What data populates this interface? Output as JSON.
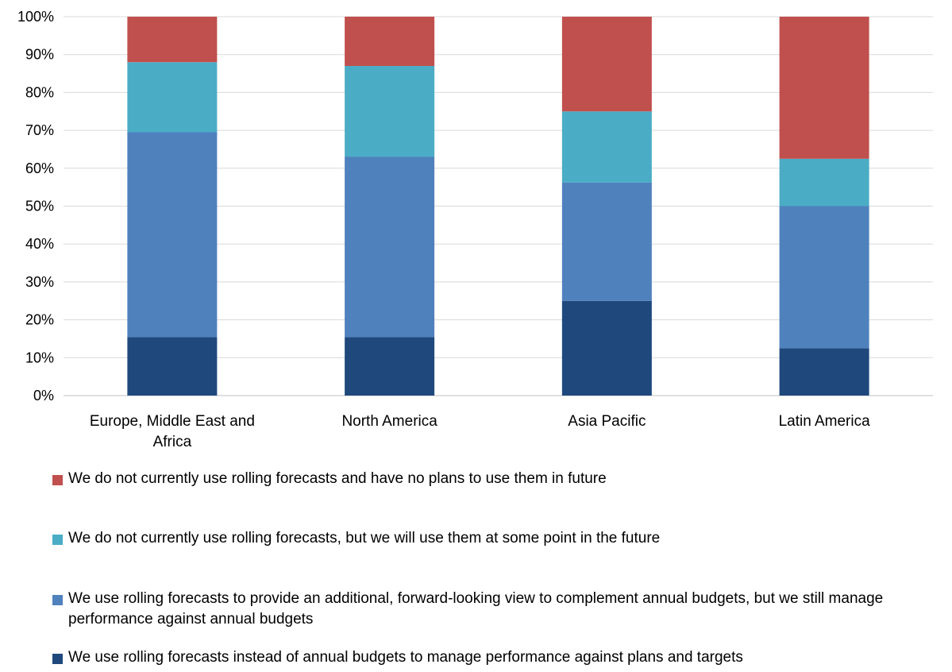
{
  "chart_data": {
    "type": "bar",
    "stacked": true,
    "percent": true,
    "categories": [
      [
        "Europe, Middle East and",
        "Africa"
      ],
      [
        "North America"
      ],
      [
        "Asia Pacific"
      ],
      [
        "Latin America"
      ]
    ],
    "series": [
      {
        "name": "We use rolling forecasts instead of annual budgets to manage performance against plans and targets",
        "color": "#1f497d",
        "values": [
          15.4,
          15.4,
          25.0,
          12.5
        ]
      },
      {
        "name": "We use rolling forecasts to provide an additional, forward-looking view to complement annual budgets, but we still manage performance against annual budgets",
        "color": "#4f81bd",
        "values": [
          54.1,
          47.6,
          31.2,
          37.5
        ]
      },
      {
        "name": "We do not currently use rolling forecasts, but we will use them at some point in the future",
        "color": "#4bacc6",
        "values": [
          18.5,
          24.0,
          18.8,
          12.5
        ]
      },
      {
        "name": "We do not currently use rolling forecasts and have no plans to use them in future",
        "color": "#c0504d",
        "values": [
          12.0,
          13.0,
          25.0,
          37.5
        ]
      }
    ],
    "ylim": [
      0,
      100
    ],
    "yticks": [
      "0%",
      "10%",
      "20%",
      "30%",
      "40%",
      "50%",
      "60%",
      "70%",
      "80%",
      "90%",
      "100%"
    ],
    "grid": true,
    "legend_position": "bottom",
    "legend_order": [
      3,
      2,
      1,
      0
    ]
  }
}
